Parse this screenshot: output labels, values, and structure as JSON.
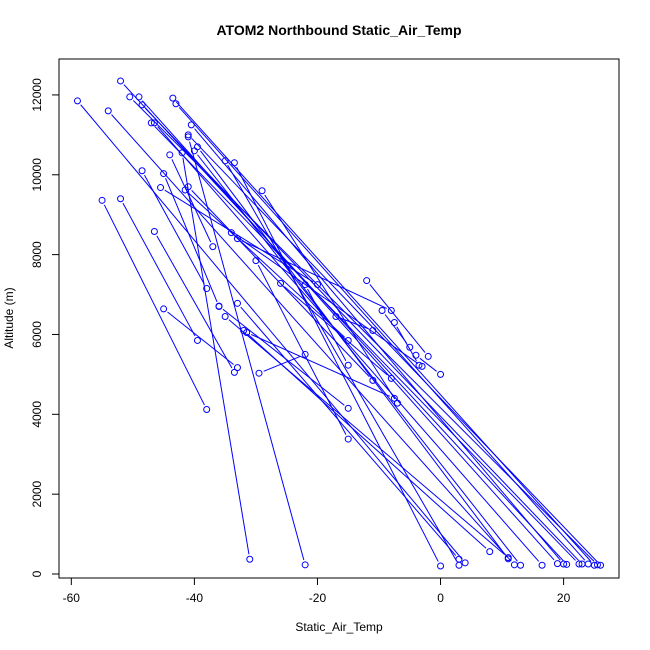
{
  "chart_data": {
    "type": "line",
    "title": "ATOM2 Northbound Static_Air_Temp",
    "xlabel": "Static_Air_Temp",
    "ylabel": "Altitude (m)",
    "xlim": [
      -62,
      29
    ],
    "ylim": [
      -100,
      12900
    ],
    "x_ticks": [
      -60,
      -40,
      -20,
      0,
      20
    ],
    "y_ticks": [
      0,
      2000,
      4000,
      6000,
      8000,
      10000,
      12000
    ],
    "x_tick_labels": [
      "-60",
      "-40",
      "-20",
      "0",
      "20"
    ],
    "y_tick_labels": [
      "0",
      "2000",
      "4000",
      "6000",
      "8000",
      "10000",
      "12000"
    ],
    "series_color": "#0000ff",
    "marker": "open-circle",
    "grid": false,
    "profiles": [
      [
        [
          -59,
          11850
        ],
        [
          4,
          280
        ]
      ],
      [
        [
          -54,
          11600
        ],
        [
          12,
          230
        ]
      ],
      [
        [
          -52,
          12350
        ],
        [
          20.5,
          240
        ]
      ],
      [
        [
          -50.5,
          11950
        ],
        [
          25.5,
          230
        ]
      ],
      [
        [
          -49,
          11950
        ],
        [
          19,
          260
        ]
      ],
      [
        [
          -48.5,
          11750
        ],
        [
          23,
          250
        ]
      ],
      [
        [
          -47,
          11300
        ],
        [
          22.5,
          250
        ]
      ],
      [
        [
          -46.5,
          11300
        ],
        [
          16.5,
          220
        ]
      ],
      [
        [
          -43.5,
          11920
        ],
        [
          25,
          220
        ]
      ],
      [
        [
          -43,
          11780
        ],
        [
          24,
          250
        ]
      ],
      [
        [
          -41,
          11000
        ],
        [
          26,
          220
        ]
      ],
      [
        [
          -40.5,
          11250
        ],
        [
          20,
          250
        ]
      ],
      [
        [
          -40,
          10600
        ],
        [
          13,
          220
        ]
      ],
      [
        [
          -39.5,
          10700
        ],
        [
          11,
          380
        ]
      ],
      [
        [
          -35,
          10350
        ],
        [
          3,
          220
        ]
      ],
      [
        [
          -33.5,
          10300
        ],
        [
          0,
          200
        ]
      ],
      [
        [
          -41,
          10950
        ],
        [
          -22,
          230
        ]
      ],
      [
        [
          -42,
          10550
        ],
        [
          -31,
          370
        ]
      ],
      [
        [
          -44,
          10500
        ],
        [
          -37,
          8200
        ]
      ],
      [
        [
          -45,
          10030
        ],
        [
          -36,
          6700
        ]
      ],
      [
        [
          -48.5,
          10100
        ],
        [
          -38,
          7150
        ]
      ],
      [
        [
          -41.5,
          9620
        ],
        [
          -15,
          5850
        ]
      ],
      [
        [
          -41,
          9700
        ],
        [
          -11,
          4850
        ]
      ],
      [
        [
          -29,
          9600
        ],
        [
          -7,
          4280
        ]
      ],
      [
        [
          -45.5,
          9680
        ],
        [
          -20,
          7250
        ]
      ],
      [
        [
          -55,
          9360
        ],
        [
          -38,
          4120
        ]
      ],
      [
        [
          -52,
          9400
        ],
        [
          -39.5,
          5850
        ]
      ],
      [
        [
          -46.5,
          8580
        ],
        [
          -33.5,
          5050
        ]
      ],
      [
        [
          -34,
          8550
        ],
        [
          -3,
          5200
        ]
      ],
      [
        [
          -33,
          8400
        ],
        [
          -8,
          6600
        ]
      ],
      [
        [
          -30,
          7850
        ],
        [
          -15,
          3380
        ]
      ],
      [
        [
          -26,
          7280
        ],
        [
          -8,
          4900
        ]
      ],
      [
        [
          -32,
          6100
        ],
        [
          8,
          560
        ]
      ],
      [
        [
          -33,
          6780
        ],
        [
          3,
          370
        ]
      ],
      [
        [
          -35,
          6450
        ],
        [
          11,
          410
        ]
      ],
      [
        [
          -36,
          6710
        ],
        [
          -15,
          4150
        ]
      ],
      [
        [
          -45,
          6640
        ],
        [
          -33,
          5170
        ]
      ],
      [
        [
          -29.5,
          5030
        ],
        [
          -22,
          5500
        ]
      ],
      [
        [
          -22,
          7250
        ],
        [
          -15,
          5230
        ]
      ],
      [
        [
          -17,
          6450
        ],
        [
          -11,
          6100
        ]
      ],
      [
        [
          -12,
          7350
        ],
        [
          -2,
          5450
        ]
      ],
      [
        [
          -9.5,
          6600
        ],
        [
          -5,
          5680
        ]
      ],
      [
        [
          -7.5,
          6300
        ],
        [
          -3.5,
          5230
        ]
      ],
      [
        [
          -4,
          5480
        ],
        [
          0,
          5000
        ]
      ],
      [
        [
          -31.5,
          6050
        ],
        [
          -7.5,
          4400
        ]
      ]
    ]
  }
}
